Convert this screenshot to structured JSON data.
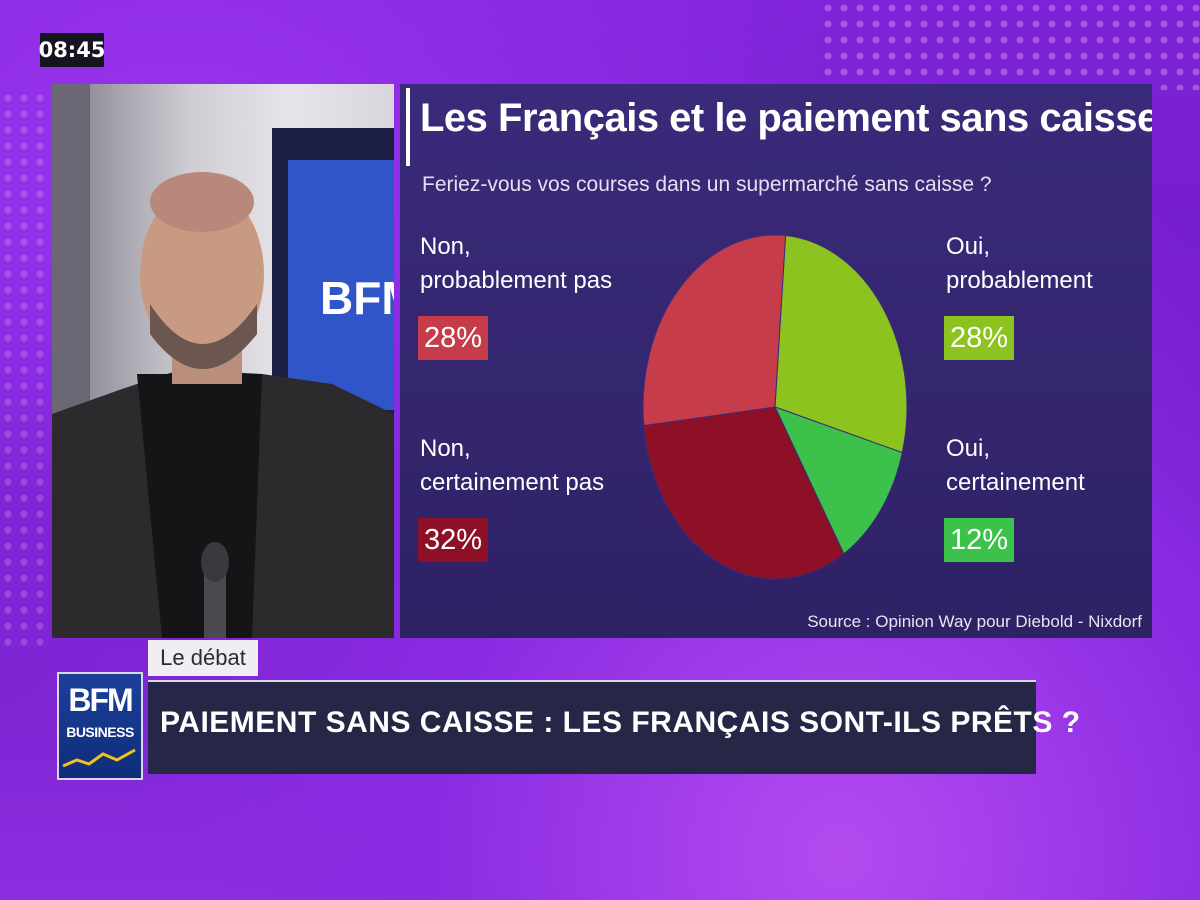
{
  "broadcast": {
    "clock": "08:45",
    "segment_tag": "Le débat",
    "headline": "PAIEMENT SANS CAISSE : LES FRANÇAIS SONT-ILS PRÊTS ?",
    "channel_logo": {
      "line1": "BFM",
      "line2": "BUSINESS"
    }
  },
  "video_backdrop_text": "BFM BUSIN",
  "panel": {
    "title": "Les Français et le paiement sans caisse",
    "question": "Feriez-vous vos courses dans un supermarché sans caisse ?",
    "source": "Source : Opinion Way pour Diebold - Nixdorf",
    "labels": {
      "non_prob_1": "Non,",
      "non_prob_2": "probablement pas",
      "non_prob_pct": "28%",
      "non_cert_1": "Non,",
      "non_cert_2": "certainement pas",
      "non_cert_pct": "32%",
      "oui_prob_1": "Oui,",
      "oui_prob_2": "probablement",
      "oui_prob_pct": "28%",
      "oui_cert_1": "Oui,",
      "oui_cert_2": "certainement",
      "oui_cert_pct": "12%"
    }
  },
  "chart_data": {
    "type": "pie",
    "title": "Les Français et le paiement sans caisse",
    "subtitle": "Feriez-vous vos courses dans un supermarché sans caisse ?",
    "categories": [
      "Oui, probablement",
      "Oui, certainement",
      "Non, certainement pas",
      "Non, probablement pas"
    ],
    "values": [
      28,
      12,
      32,
      28
    ],
    "colors": [
      "#8cc31e",
      "#3cc24a",
      "#8e1026",
      "#c63c4a"
    ],
    "legend": "none (labels beside pie)"
  },
  "colors": {
    "background": "#7a1fd0",
    "panel": "#34256e",
    "headline_bar": "#262646",
    "oui_prob": "#8cc31e",
    "oui_cert": "#3cc24a",
    "non_cert": "#8e1026",
    "non_prob": "#c63c4a"
  }
}
